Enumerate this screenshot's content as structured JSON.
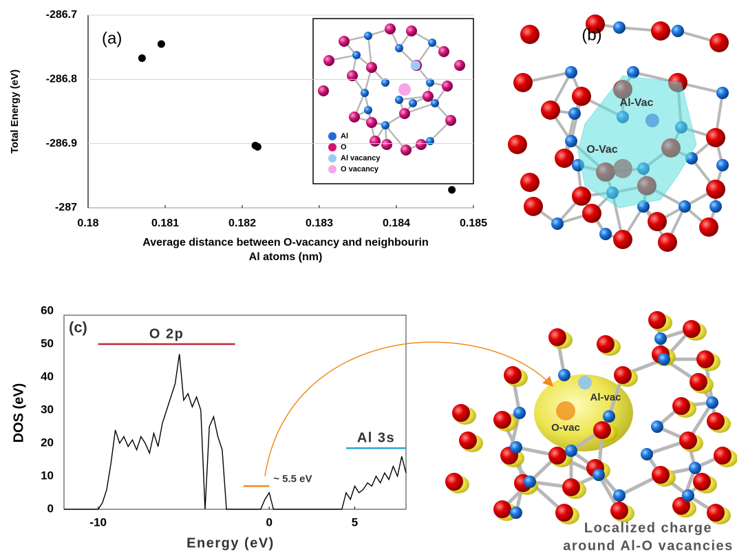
{
  "chart_data": [
    {
      "type": "scatter",
      "title": "(a)",
      "x_label": [
        "Average distance  between O-vacancy and neighbourin",
        "Al atoms (nm)"
      ],
      "y_label": "Total Energy (eV)",
      "x": [
        0.1807,
        0.18095,
        0.18217,
        0.1822,
        0.18472
      ],
      "values": [
        -286.767,
        -286.745,
        -286.903,
        -286.905,
        -286.972
      ],
      "color": "#000000",
      "xlim": [
        0.18,
        0.185
      ],
      "xticks": [
        0.18,
        0.181,
        0.182,
        0.183,
        0.184,
        0.185
      ],
      "ylim": [
        -287,
        -286.7
      ],
      "yticks": [
        -287,
        -286.9,
        -286.8,
        -286.7
      ],
      "grid": true,
      "inset_legend": [
        {
          "name": "Al",
          "color": "#1f6fd6"
        },
        {
          "name": "O",
          "color": "#d0157a"
        },
        {
          "name": "Al vacancy",
          "color": "#9cc9f5"
        },
        {
          "name": "O vacancy",
          "color": "#f7a6e6"
        }
      ]
    },
    {
      "type": "line",
      "title": "(c)",
      "x_label": "Energy  (eV)",
      "y_label": "DOS (eV)",
      "color": "#000000",
      "x": [
        -12,
        -11.75,
        -11.5,
        -11.25,
        -11,
        -10.75,
        -10.5,
        -10.25,
        -10,
        -9.75,
        -9.5,
        -9.25,
        -9,
        -8.75,
        -8.5,
        -8.25,
        -8,
        -7.75,
        -7.5,
        -7.25,
        -7,
        -6.75,
        -6.5,
        -6.25,
        -6,
        -5.75,
        -5.5,
        -5.25,
        -5,
        -4.75,
        -4.5,
        -4.25,
        -4,
        -3.75,
        -3.5,
        -3.25,
        -3,
        -2.75,
        -2.5,
        -2.25,
        -2,
        -1.75,
        -1.5,
        -1.25,
        -1,
        -0.75,
        -0.5,
        -0.25,
        0,
        0.25,
        0.5,
        0.75,
        1,
        1.25,
        1.5,
        1.75,
        2,
        2.25,
        2.5,
        2.75,
        3,
        3.25,
        3.5,
        3.75,
        4,
        4.25,
        4.5,
        4.75,
        5,
        5.25,
        5.5,
        5.75,
        6,
        6.25,
        6.5,
        6.75,
        7,
        7.25,
        7.5,
        7.75,
        8
      ],
      "values": [
        0,
        0,
        0,
        0,
        0,
        0,
        0,
        0,
        0,
        2,
        6,
        14,
        24,
        20,
        22,
        19,
        21,
        18,
        22,
        20,
        17,
        23,
        19,
        26,
        30,
        34,
        38,
        47,
        33,
        35,
        31,
        34,
        30,
        0,
        25,
        28,
        22,
        18,
        0,
        0,
        0,
        0,
        0,
        0,
        0,
        0,
        0,
        3,
        5,
        0,
        0,
        0,
        0,
        0,
        0,
        0,
        0,
        0,
        0,
        0,
        0,
        0,
        0,
        0,
        0,
        0,
        5,
        3,
        7,
        5,
        6,
        8,
        7,
        10,
        8,
        11,
        9,
        13,
        10,
        16,
        11
      ],
      "xlim": [
        -12,
        8
      ],
      "xticks": [
        -10,
        0,
        5
      ],
      "ylim": [
        0,
        60
      ],
      "yticks": [
        0,
        10,
        20,
        30,
        40,
        50,
        60
      ],
      "bands": [
        {
          "label": "O 2p",
          "x": [
            -10,
            -2
          ],
          "y": 50,
          "color": "#c0282d"
        },
        {
          "label": "Al 3s",
          "x": [
            4.5,
            8
          ],
          "y": 18.5,
          "color": "#2aa3d8"
        },
        {
          "label": "~ 5.5 eV",
          "x": [
            -1.5,
            0
          ],
          "y": 7,
          "color": "#f08a1c"
        }
      ]
    }
  ],
  "panel_b": {
    "label": "(b)",
    "al_vac": "Al-Vac",
    "o_vac": "O-Vac"
  },
  "panel_d": {
    "al_vac": "Al-vac",
    "o_vac": "O-vac",
    "caption": [
      "Localized charge",
      "around Al-O vacancies"
    ]
  }
}
